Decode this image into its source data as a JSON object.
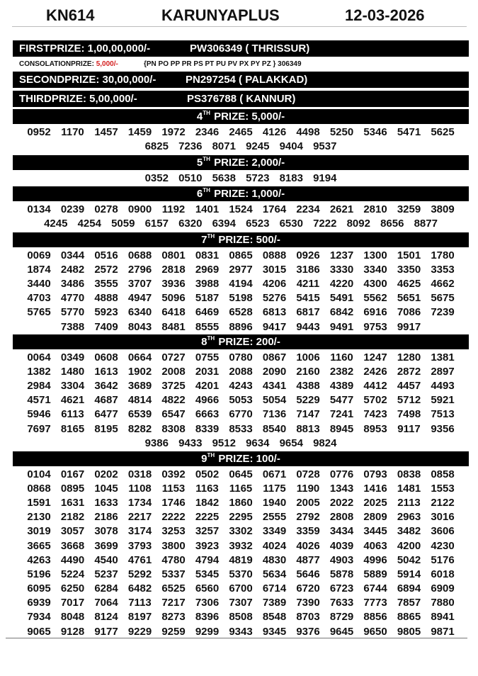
{
  "header": {
    "draw_code": "KN614",
    "lottery_name": "KARUNYAPLUS",
    "date": "12-03-2026"
  },
  "first_prize": {
    "label": "FIRSTPRIZE: 1,00,00,000/-",
    "winner": "PW306349 ( THRISSUR)"
  },
  "consolation": {
    "label": "CONSOLATIONPRIZE:",
    "amount": "5,000/-",
    "series": "{PN PO PP PR PS PT PU PV PX PY PZ } 306349",
    "amount_color": "#d41f1f"
  },
  "second_prize": {
    "label": "SECONDPRIZE: 30,00,000/-",
    "winner": "PN297254 ( PALAKKAD)"
  },
  "third_prize": {
    "label": "THIRDPRIZE: 5,00,000/-",
    "winner": "PS376788 ( KANNUR)"
  },
  "prizes": [
    {
      "ord": "4",
      "sup": "TH",
      "rest": " PRIZE: 5,000/-",
      "numbers": [
        "0952",
        "1170",
        "1457",
        "1459",
        "1972",
        "2346",
        "2465",
        "4126",
        "4498",
        "5250",
        "5346",
        "5471",
        "5625",
        "6825",
        "7236",
        "8071",
        "9245",
        "9404",
        "9537"
      ]
    },
    {
      "ord": "5",
      "sup": "TH",
      "rest": " PRIZE: 2,000/-",
      "numbers": [
        "0352",
        "0510",
        "5638",
        "5723",
        "8183",
        "9194"
      ]
    },
    {
      "ord": "6",
      "sup": "TH",
      "rest": " PRIZE: 1,000/-",
      "numbers": [
        "0134",
        "0239",
        "0278",
        "0900",
        "1192",
        "1401",
        "1524",
        "1764",
        "2234",
        "2621",
        "2810",
        "3259",
        "3809",
        "4245",
        "4254",
        "5059",
        "6157",
        "6320",
        "6394",
        "6523",
        "6530",
        "7222",
        "8092",
        "8656",
        "8877"
      ]
    },
    {
      "ord": "7",
      "sup": "TH",
      "rest": " PRIZE: 500/-",
      "numbers": [
        "0069",
        "0344",
        "0516",
        "0688",
        "0801",
        "0831",
        "0865",
        "0888",
        "0926",
        "1237",
        "1300",
        "1501",
        "1780",
        "1874",
        "2482",
        "2572",
        "2796",
        "2818",
        "2969",
        "2977",
        "3015",
        "3186",
        "3330",
        "3340",
        "3350",
        "3353",
        "3440",
        "3486",
        "3555",
        "3707",
        "3936",
        "3988",
        "4194",
        "4206",
        "4211",
        "4220",
        "4300",
        "4625",
        "4662",
        "4703",
        "4770",
        "4888",
        "4947",
        "5096",
        "5187",
        "5198",
        "5276",
        "5415",
        "5491",
        "5562",
        "5651",
        "5675",
        "5765",
        "5770",
        "5923",
        "6340",
        "6418",
        "6469",
        "6528",
        "6813",
        "6817",
        "6842",
        "6916",
        "7086",
        "7239",
        "7388",
        "7409",
        "8043",
        "8481",
        "8555",
        "8896",
        "9417",
        "9443",
        "9491",
        "9753",
        "9917"
      ]
    },
    {
      "ord": "8",
      "sup": "TH",
      "rest": " PRIZE: 200/-",
      "numbers": [
        "0064",
        "0349",
        "0608",
        "0664",
        "0727",
        "0755",
        "0780",
        "0867",
        "1006",
        "1160",
        "1247",
        "1280",
        "1381",
        "1382",
        "1480",
        "1613",
        "1902",
        "2008",
        "2031",
        "2088",
        "2090",
        "2160",
        "2382",
        "2426",
        "2872",
        "2897",
        "2984",
        "3304",
        "3642",
        "3689",
        "3725",
        "4201",
        "4243",
        "4341",
        "4388",
        "4389",
        "4412",
        "4457",
        "4493",
        "4571",
        "4621",
        "4687",
        "4814",
        "4822",
        "4966",
        "5053",
        "5054",
        "5229",
        "5477",
        "5702",
        "5712",
        "5921",
        "5946",
        "6113",
        "6477",
        "6539",
        "6547",
        "6663",
        "6770",
        "7136",
        "7147",
        "7241",
        "7423",
        "7498",
        "7513",
        "7697",
        "8165",
        "8195",
        "8282",
        "8308",
        "8339",
        "8533",
        "8540",
        "8813",
        "8945",
        "8953",
        "9117",
        "9356",
        "9386",
        "9433",
        "9512",
        "9634",
        "9654",
        "9824"
      ]
    },
    {
      "ord": "9",
      "sup": "TH",
      "rest": " PRIZE: 100/-",
      "numbers": [
        "0104",
        "0167",
        "0202",
        "0318",
        "0392",
        "0502",
        "0645",
        "0671",
        "0728",
        "0776",
        "0793",
        "0838",
        "0858",
        "0868",
        "0895",
        "1045",
        "1108",
        "1153",
        "1163",
        "1165",
        "1175",
        "1190",
        "1343",
        "1416",
        "1481",
        "1553",
        "1591",
        "1631",
        "1633",
        "1734",
        "1746",
        "1842",
        "1860",
        "1940",
        "2005",
        "2022",
        "2025",
        "2113",
        "2122",
        "2130",
        "2182",
        "2186",
        "2217",
        "2222",
        "2225",
        "2295",
        "2555",
        "2792",
        "2808",
        "2809",
        "2963",
        "3016",
        "3019",
        "3057",
        "3078",
        "3174",
        "3253",
        "3257",
        "3302",
        "3349",
        "3359",
        "3434",
        "3445",
        "3482",
        "3606",
        "3665",
        "3668",
        "3699",
        "3793",
        "3800",
        "3923",
        "3932",
        "4024",
        "4026",
        "4039",
        "4063",
        "4200",
        "4230",
        "4263",
        "4490",
        "4540",
        "4761",
        "4780",
        "4794",
        "4819",
        "4830",
        "4877",
        "4903",
        "4996",
        "5042",
        "5176",
        "5196",
        "5224",
        "5237",
        "5292",
        "5337",
        "5345",
        "5370",
        "5634",
        "5646",
        "5878",
        "5889",
        "5914",
        "6018",
        "6095",
        "6250",
        "6284",
        "6482",
        "6525",
        "6560",
        "6700",
        "6714",
        "6720",
        "6723",
        "6744",
        "6894",
        "6909",
        "6939",
        "7017",
        "7064",
        "7113",
        "7217",
        "7306",
        "7307",
        "7389",
        "7390",
        "7633",
        "7773",
        "7857",
        "7880",
        "7934",
        "8048",
        "8124",
        "8197",
        "8273",
        "8396",
        "8508",
        "8548",
        "8703",
        "8729",
        "8856",
        "8865",
        "8941",
        "9065",
        "9128",
        "9177",
        "9229",
        "9259",
        "9299",
        "9343",
        "9345",
        "9376",
        "9645",
        "9650",
        "9805",
        "9871"
      ]
    }
  ]
}
